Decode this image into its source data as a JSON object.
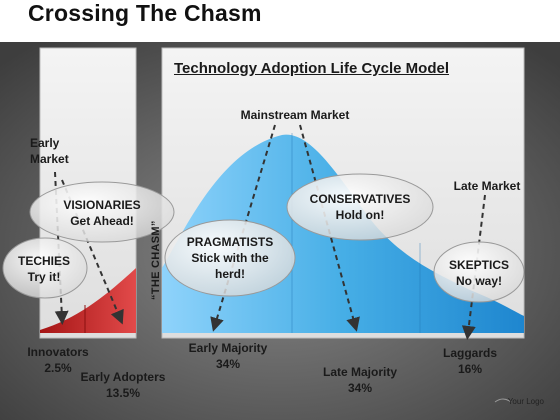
{
  "slide_title": "Crossing The Chasm",
  "chart_title": "Technology Adoption Life Cycle Model",
  "labels": {
    "early_market": "Early\nMarket",
    "mainstream_market": "Mainstream Market",
    "late_market": "Late Market",
    "the_chasm": "“THE CHASM”"
  },
  "bubbles": {
    "visionaries": "VISIONARIES\nGet Ahead!",
    "techies": "TECHIES\nTry it!",
    "pragmatists": "PRAGMATISTS\nStick with the\nherd!",
    "conservatives": "CONSERVATIVES\nHold on!",
    "skeptics": "SKEPTICS\nNo way!"
  },
  "segments": {
    "innovators": "Innovators\n2.5%",
    "early_adopters": "Early Adopters\n13.5%",
    "early_majority": "Early Majority\n34%",
    "late_majority": "Late Majority\n34%",
    "laggards": "Laggards\n16%"
  },
  "logo": "Your Logo",
  "colors": {
    "background_dark": "#6a6a6a",
    "panel": "#e6e6e6",
    "curve_blue": "#3fa6e0",
    "curve_red": "#c02020"
  }
}
